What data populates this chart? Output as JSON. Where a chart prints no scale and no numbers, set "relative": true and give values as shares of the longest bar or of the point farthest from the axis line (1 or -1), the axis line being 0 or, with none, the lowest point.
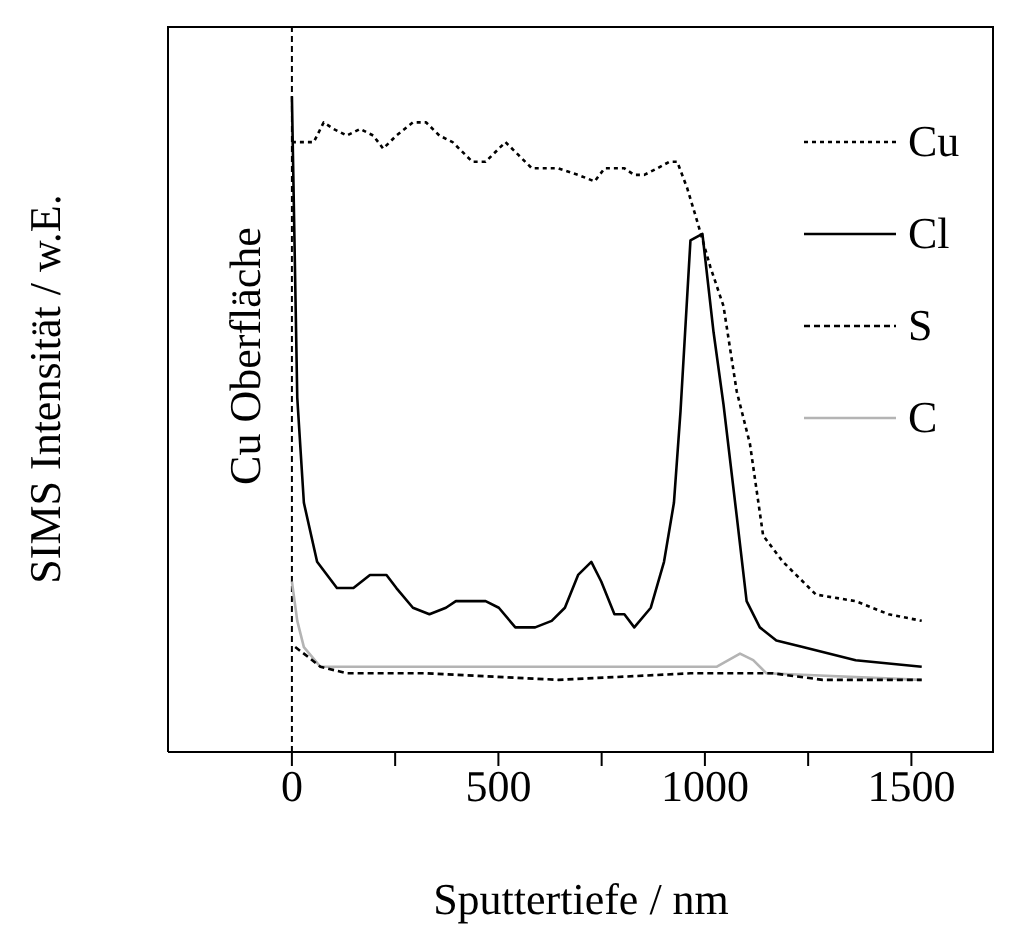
{
  "chart_data": {
    "type": "line",
    "relative": true,
    "xlabel": "Sputtertiefe / nm",
    "ylabel": "SIMS Intensität / w.E.",
    "xlim": [
      -300,
      1700
    ],
    "xticks": [
      0,
      {
        "value": 250,
        "label": null
      },
      500,
      {
        "value": 750,
        "label": null
      },
      1000,
      {
        "value": 1250,
        "label": null
      },
      1500
    ],
    "legend": "top right",
    "grid": false,
    "marker": "none",
    "ref_lines": [
      {
        "axis": "x",
        "value": 0,
        "label": "Cu Oberfläche",
        "color": "#000000",
        "line_style": "dashed"
      }
    ],
    "series": [
      {
        "name": "Cu",
        "color": "#000000",
        "line_style": "dotted",
        "x": [
          0,
          53,
          77,
          101,
          133,
          165,
          197,
          221,
          253,
          293,
          325,
          357,
          389,
          437,
          469,
          517,
          549,
          581,
          645,
          693,
          733,
          757,
          805,
          829,
          853,
          885,
          914,
          933,
          957,
          981,
          1013,
          1045,
          1077,
          1109,
          1141,
          1189,
          1269,
          1365,
          1445,
          1525
        ],
        "values": [
          0.93,
          0.93,
          0.96,
          0.95,
          0.94,
          0.95,
          0.94,
          0.92,
          0.94,
          0.96,
          0.96,
          0.94,
          0.93,
          0.9,
          0.9,
          0.93,
          0.91,
          0.89,
          0.89,
          0.88,
          0.87,
          0.89,
          0.89,
          0.88,
          0.88,
          0.89,
          0.9,
          0.9,
          0.86,
          0.81,
          0.74,
          0.68,
          0.55,
          0.47,
          0.33,
          0.29,
          0.24,
          0.23,
          0.21,
          0.2
        ]
      },
      {
        "name": "Cl",
        "color": "#000000",
        "line_style": "solid",
        "x": [
          0,
          13,
          29,
          61,
          109,
          149,
          189,
          229,
          253,
          293,
          333,
          373,
          397,
          437,
          469,
          501,
          541,
          589,
          629,
          661,
          693,
          725,
          749,
          781,
          805,
          829,
          869,
          901,
          925,
          941,
          965,
          994,
          1021,
          1045,
          1077,
          1101,
          1133,
          1173,
          1237,
          1365,
          1525
        ],
        "values": [
          1,
          0.54,
          0.38,
          0.29,
          0.25,
          0.25,
          0.27,
          0.27,
          0.25,
          0.22,
          0.21,
          0.22,
          0.23,
          0.23,
          0.23,
          0.22,
          0.19,
          0.19,
          0.2,
          0.22,
          0.27,
          0.29,
          0.26,
          0.21,
          0.21,
          0.19,
          0.22,
          0.29,
          0.38,
          0.52,
          0.78,
          0.79,
          0.64,
          0.53,
          0.36,
          0.23,
          0.19,
          0.17,
          0.16,
          0.14,
          0.13
        ]
      },
      {
        "name": "S",
        "color": "#000000",
        "line_style": "dashed",
        "x": [
          8,
          29,
          69,
          133,
          325,
          645,
          965,
          1165,
          1285,
          1525
        ],
        "values": [
          0.16,
          0.15,
          0.13,
          0.12,
          0.12,
          0.11,
          0.12,
          0.12,
          0.11,
          0.11
        ]
      },
      {
        "name": "C",
        "color": "#b4b4b4",
        "line_style": "solid",
        "x": [
          0,
          13,
          29,
          69,
          133,
          485,
          965,
          1029,
          1085,
          1117,
          1149,
          1525
        ],
        "values": [
          0.26,
          0.2,
          0.16,
          0.13,
          0.13,
          0.13,
          0.13,
          0.13,
          0.15,
          0.14,
          0.12,
          0.11
        ]
      }
    ]
  }
}
